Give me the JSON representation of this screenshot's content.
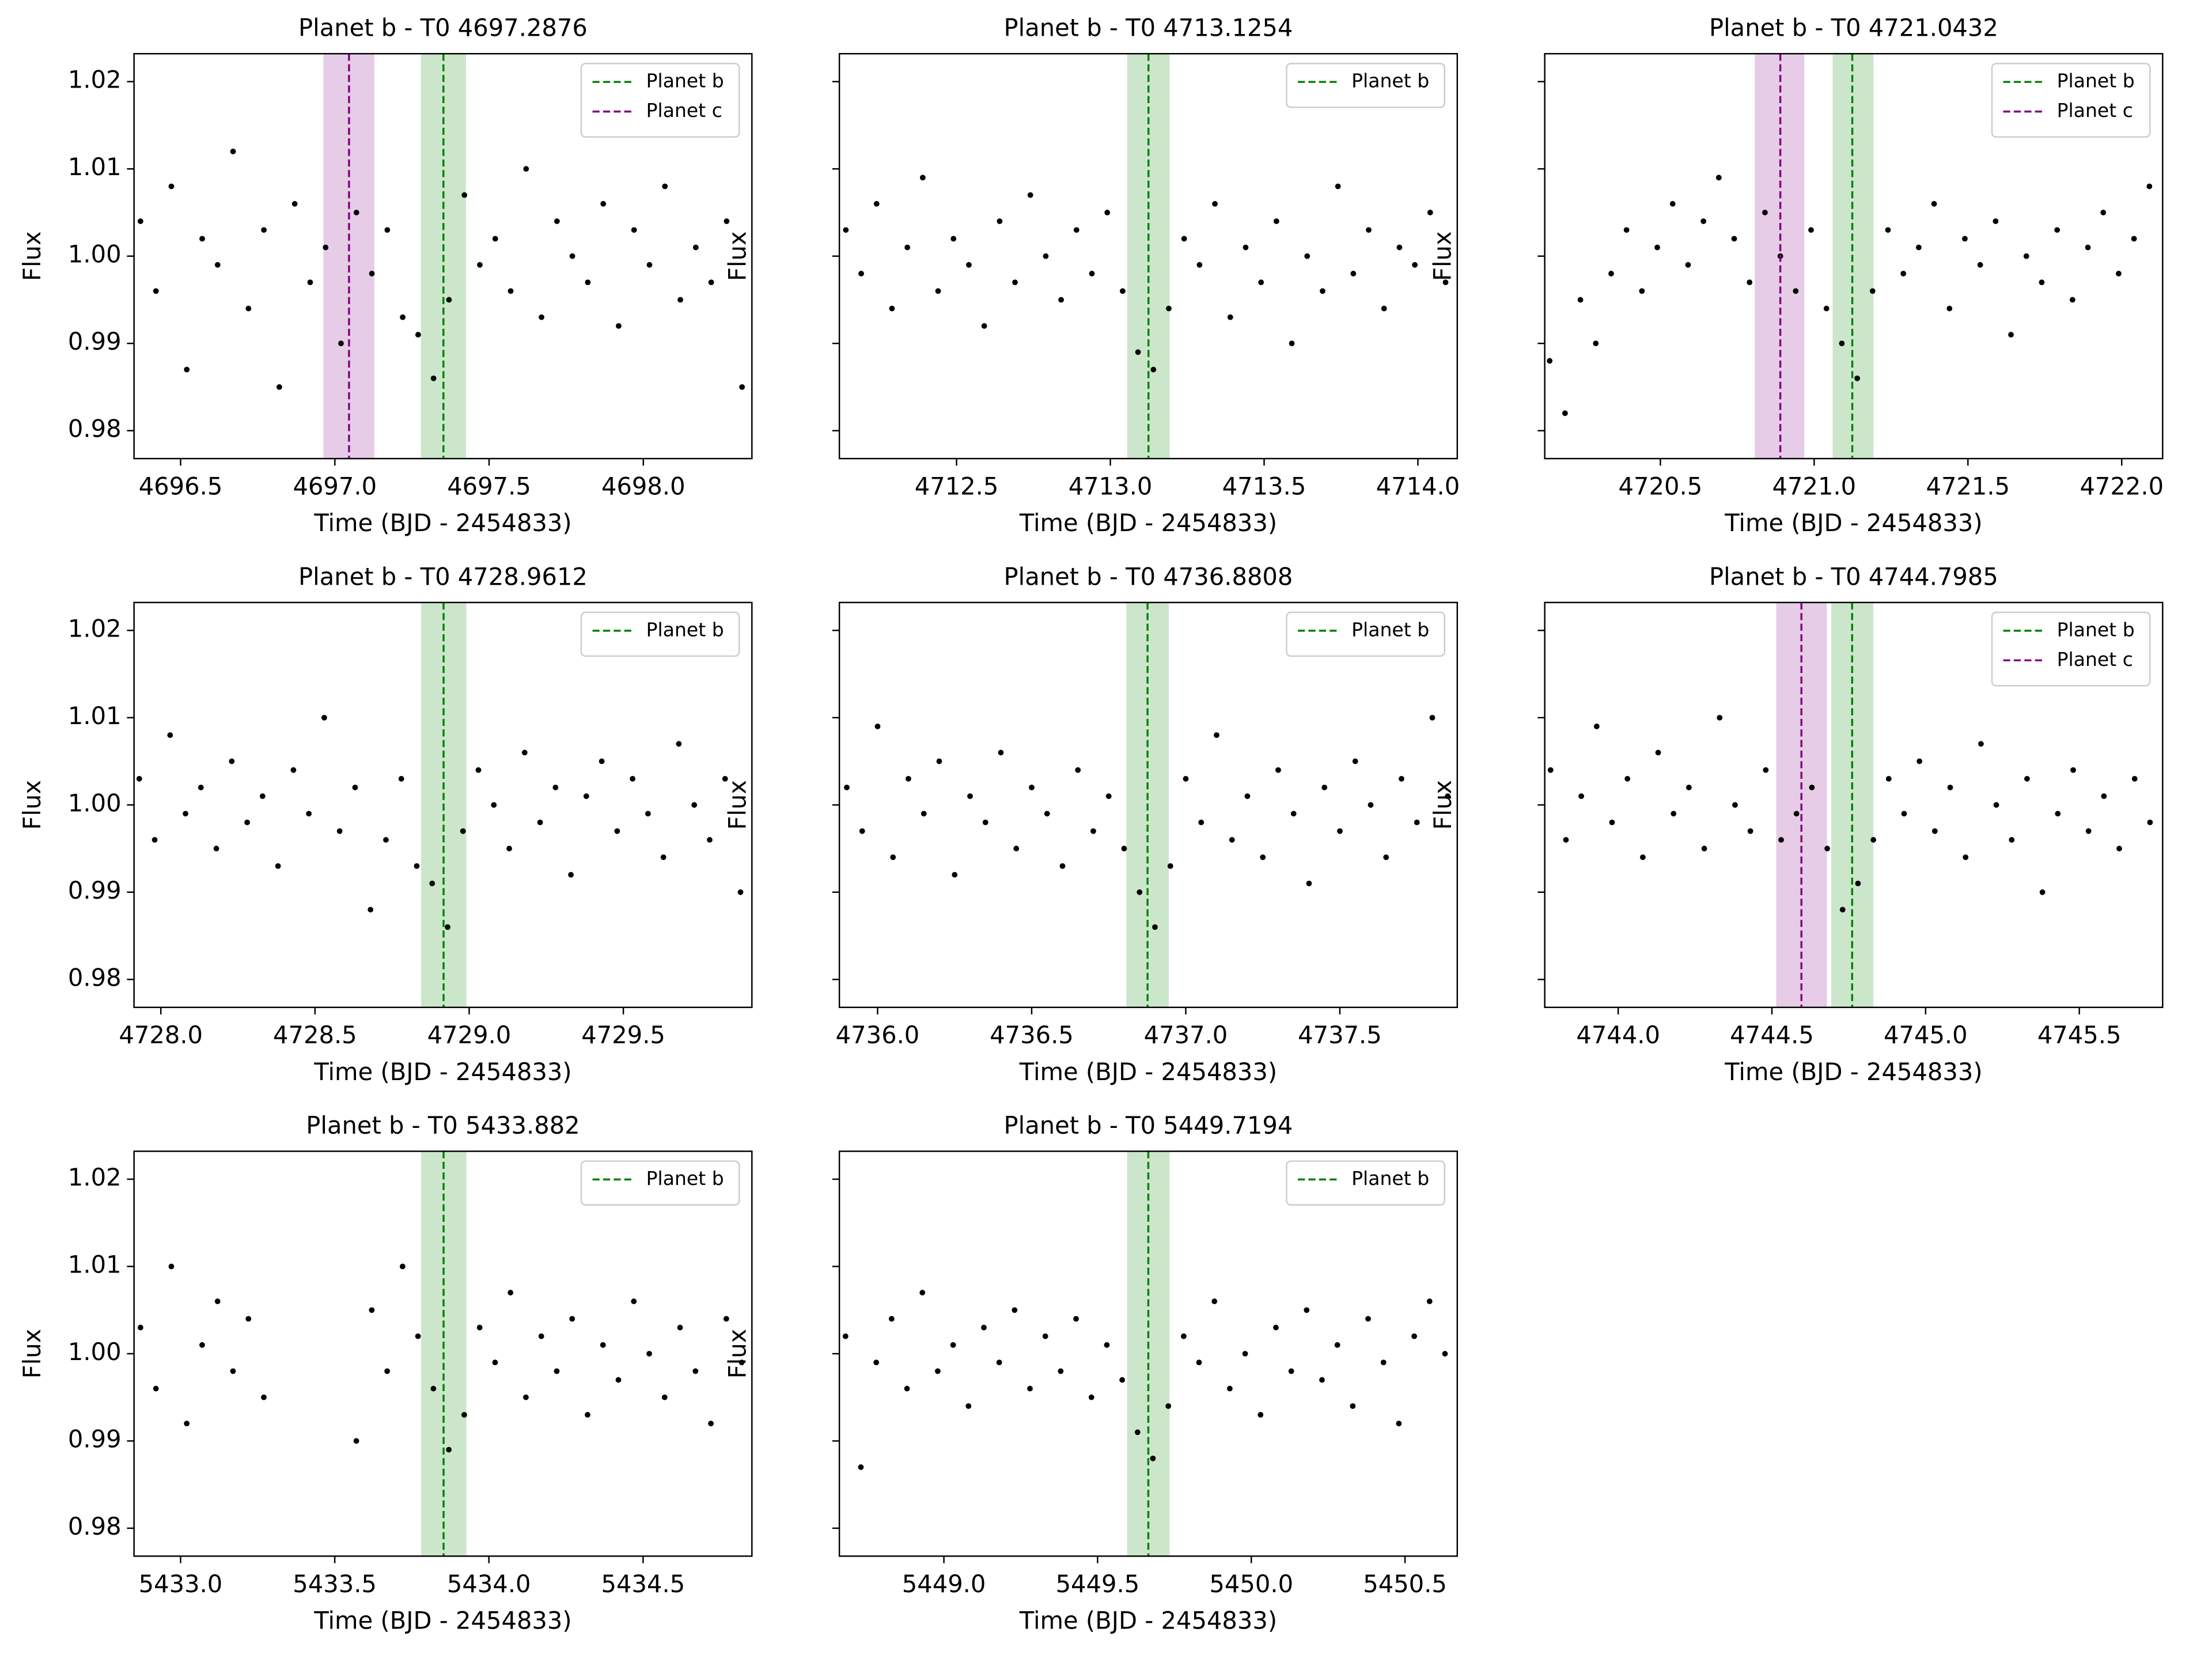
{
  "chart_data": [
    {
      "type": "scatter",
      "title": "Planet b - T0 4697.2876",
      "xlabel": "Time (BJD - 2454833)",
      "ylabel": "Flux",
      "color": "black",
      "legend": "upper right",
      "ytick_labels": true,
      "xlim": [
        4696.349,
        4698.352
      ],
      "ylim": [
        0.9768,
        1.0232
      ],
      "xticks": [
        4696.5,
        {
          "value": 4697,
          "label": "4697.0"
        },
        4697.5,
        {
          "value": 4698,
          "label": "4698.0"
        }
      ],
      "yticks": [
        0.98,
        0.99,
        {
          "value": 1,
          "label": "1.00"
        },
        1.01,
        1.02
      ],
      "transits": [
        {
          "name": "Planet b",
          "color": "green",
          "x": 4697.352,
          "span": [
            4697.279,
            4697.425
          ]
        },
        {
          "name": "Planet c",
          "color": "purple",
          "x": 4697.046,
          "span": [
            4696.963,
            4697.128
          ]
        }
      ],
      "x": [
        4696.37,
        4696.42,
        4696.47,
        4696.52,
        4696.57,
        4696.62,
        4696.67,
        4696.72,
        4696.77,
        4696.82,
        4696.87,
        4696.92,
        4696.97,
        4697.02,
        4697.07,
        4697.12,
        4697.17,
        4697.22,
        4697.27,
        4697.32,
        4697.37,
        4697.42,
        4697.47,
        4697.52,
        4697.57,
        4697.62,
        4697.67,
        4697.72,
        4697.77,
        4697.82,
        4697.87,
        4697.92,
        4697.97,
        4698.02,
        4698.07,
        4698.12,
        4698.17,
        4698.22,
        4698.27,
        4698.32
      ],
      "values": [
        1.004,
        0.996,
        1.008,
        0.987,
        1.002,
        0.999,
        1.012,
        0.994,
        1.003,
        0.985,
        1.006,
        0.997,
        1.001,
        0.99,
        1.005,
        0.998,
        1.003,
        0.993,
        0.991,
        0.986,
        0.995,
        1.007,
        0.999,
        1.002,
        0.996,
        1.01,
        0.993,
        1.004,
        1.0,
        0.997,
        1.006,
        0.992,
        1.003,
        0.999,
        1.008,
        0.995,
        1.001,
        0.997,
        1.004,
        0.985
      ]
    },
    {
      "type": "scatter",
      "title": "Planet b - T0 4713.1254",
      "xlabel": "Time (BJD - 2454833)",
      "ylabel": "Flux",
      "color": "black",
      "legend": "upper right",
      "ytick_labels": false,
      "xlim": [
        4712.119,
        4714.128
      ],
      "ylim": [
        0.9768,
        1.0232
      ],
      "xticks": [
        4712.5,
        {
          "value": 4713,
          "label": "4713.0"
        },
        4713.5,
        {
          "value": 4714,
          "label": "4714.0"
        }
      ],
      "yticks": [
        0.98,
        0.99,
        1,
        1.01,
        1.02
      ],
      "transits": [
        {
          "name": "Planet b",
          "color": "green",
          "x": 4713.124,
          "span": [
            4713.055,
            4713.193
          ]
        }
      ],
      "x": [
        4712.14,
        4712.19,
        4712.24,
        4712.29,
        4712.34,
        4712.39,
        4712.44,
        4712.49,
        4712.54,
        4712.59,
        4712.64,
        4712.69,
        4712.74,
        4712.79,
        4712.84,
        4712.89,
        4712.94,
        4712.99,
        4713.04,
        4713.09,
        4713.14,
        4713.19,
        4713.24,
        4713.29,
        4713.34,
        4713.39,
        4713.44,
        4713.49,
        4713.54,
        4713.59,
        4713.64,
        4713.69,
        4713.74,
        4713.79,
        4713.84,
        4713.89,
        4713.94,
        4713.99,
        4714.04,
        4714.09
      ],
      "values": [
        1.003,
        0.998,
        1.006,
        0.994,
        1.001,
        1.009,
        0.996,
        1.002,
        0.999,
        0.992,
        1.004,
        0.997,
        1.007,
        1.0,
        0.995,
        1.003,
        0.998,
        1.005,
        0.996,
        0.989,
        0.987,
        0.994,
        1.002,
        0.999,
        1.006,
        0.993,
        1.001,
        0.997,
        1.004,
        0.99,
        1.0,
        0.996,
        1.008,
        0.998,
        1.003,
        0.994,
        1.001,
        0.999,
        1.005,
        0.997
      ]
    },
    {
      "type": "scatter",
      "title": "Planet b - T0 4721.0432",
      "xlabel": "Time (BJD - 2454833)",
      "ylabel": "Flux",
      "color": "black",
      "legend": "upper right",
      "ytick_labels": false,
      "xlim": [
        4720.124,
        4722.133
      ],
      "ylim": [
        0.9768,
        1.0232
      ],
      "xticks": [
        4720.5,
        {
          "value": 4721,
          "label": "4721.0"
        },
        4721.5,
        {
          "value": 4722,
          "label": "4722.0"
        }
      ],
      "yticks": [
        0.98,
        0.99,
        1,
        1.01,
        1.02
      ],
      "transits": [
        {
          "name": "Planet b",
          "color": "green",
          "x": 4721.124,
          "span": [
            4721.06,
            4721.193
          ]
        },
        {
          "name": "Planet c",
          "color": "purple",
          "x": 4720.89,
          "span": [
            4720.807,
            4720.968
          ]
        }
      ],
      "x": [
        4720.14,
        4720.19,
        4720.24,
        4720.29,
        4720.34,
        4720.39,
        4720.44,
        4720.49,
        4720.54,
        4720.59,
        4720.64,
        4720.69,
        4720.74,
        4720.79,
        4720.84,
        4720.89,
        4720.94,
        4720.99,
        4721.04,
        4721.09,
        4721.14,
        4721.19,
        4721.24,
        4721.29,
        4721.34,
        4721.39,
        4721.44,
        4721.49,
        4721.54,
        4721.59,
        4721.64,
        4721.69,
        4721.74,
        4721.79,
        4721.84,
        4721.89,
        4721.94,
        4721.99,
        4722.04,
        4722.09
      ],
      "values": [
        0.988,
        0.982,
        0.995,
        0.99,
        0.998,
        1.003,
        0.996,
        1.001,
        1.006,
        0.999,
        1.004,
        1.009,
        1.002,
        0.997,
        1.005,
        1.0,
        0.996,
        1.003,
        0.994,
        0.99,
        0.986,
        0.996,
        1.003,
        0.998,
        1.001,
        1.006,
        0.994,
        1.002,
        0.999,
        1.004,
        0.991,
        1.0,
        0.997,
        1.003,
        0.995,
        1.001,
        1.005,
        0.998,
        1.002,
        1.008
      ]
    },
    {
      "type": "scatter",
      "title": "Planet b - T0 4728.9612",
      "xlabel": "Time (BJD - 2454833)",
      "ylabel": "Flux",
      "color": "black",
      "legend": "upper right",
      "ytick_labels": true,
      "xlim": [
        4727.913,
        4729.917
      ],
      "ylim": [
        0.9768,
        1.0232
      ],
      "xticks": [
        {
          "value": 4728,
          "label": "4728.0"
        },
        4728.5,
        {
          "value": 4729,
          "label": "4729.0"
        },
        4729.5
      ],
      "yticks": [
        0.98,
        0.99,
        {
          "value": 1,
          "label": "1.00"
        },
        1.01,
        1.02
      ],
      "transits": [
        {
          "name": "Planet b",
          "color": "green",
          "x": 4728.917,
          "span": [
            4728.844,
            4728.991
          ]
        }
      ],
      "x": [
        4727.93,
        4727.98,
        4728.03,
        4728.08,
        4728.13,
        4728.18,
        4728.23,
        4728.28,
        4728.33,
        4728.38,
        4728.43,
        4728.48,
        4728.53,
        4728.58,
        4728.63,
        4728.68,
        4728.73,
        4728.78,
        4728.83,
        4728.88,
        4728.93,
        4728.98,
        4729.03,
        4729.08,
        4729.13,
        4729.18,
        4729.23,
        4729.28,
        4729.33,
        4729.38,
        4729.43,
        4729.48,
        4729.53,
        4729.58,
        4729.63,
        4729.68,
        4729.73,
        4729.78,
        4729.83,
        4729.88
      ],
      "values": [
        1.003,
        0.996,
        1.008,
        0.999,
        1.002,
        0.995,
        1.005,
        0.998,
        1.001,
        0.993,
        1.004,
        0.999,
        1.01,
        0.997,
        1.002,
        0.988,
        0.996,
        1.003,
        0.993,
        0.991,
        0.986,
        0.997,
        1.004,
        1.0,
        0.995,
        1.006,
        0.998,
        1.002,
        0.992,
        1.001,
        1.005,
        0.997,
        1.003,
        0.999,
        0.994,
        1.007,
        1.0,
        0.996,
        1.003,
        0.99
      ]
    },
    {
      "type": "scatter",
      "title": "Planet b - T0 4736.8808",
      "xlabel": "Time (BJD - 2454833)",
      "ylabel": "Flux",
      "color": "black",
      "legend": "upper right",
      "ytick_labels": false,
      "xlim": [
        4735.876,
        4737.881
      ],
      "ylim": [
        0.9768,
        1.0232
      ],
      "xticks": [
        {
          "value": 4736,
          "label": "4736.0"
        },
        4736.5,
        {
          "value": 4737,
          "label": "4737.0"
        },
        4737.5
      ],
      "yticks": [
        0.98,
        0.99,
        1,
        1.01,
        1.02
      ],
      "transits": [
        {
          "name": "Planet b",
          "color": "green",
          "x": 4736.876,
          "span": [
            4736.807,
            4736.945
          ]
        }
      ],
      "x": [
        4735.9,
        4735.95,
        4736.0,
        4736.05,
        4736.1,
        4736.15,
        4736.2,
        4736.25,
        4736.3,
        4736.35,
        4736.4,
        4736.45,
        4736.5,
        4736.55,
        4736.6,
        4736.65,
        4736.7,
        4736.75,
        4736.8,
        4736.85,
        4736.9,
        4736.95,
        4737.0,
        4737.05,
        4737.1,
        4737.15,
        4737.2,
        4737.25,
        4737.3,
        4737.35,
        4737.4,
        4737.45,
        4737.5,
        4737.55,
        4737.6,
        4737.65,
        4737.7,
        4737.75,
        4737.8,
        4737.85
      ],
      "values": [
        1.002,
        0.997,
        1.009,
        0.994,
        1.003,
        0.999,
        1.005,
        0.992,
        1.001,
        0.998,
        1.006,
        0.995,
        1.002,
        0.999,
        0.993,
        1.004,
        0.997,
        1.001,
        0.995,
        0.99,
        0.986,
        0.993,
        1.003,
        0.998,
        1.008,
        0.996,
        1.001,
        0.994,
        1.004,
        0.999,
        0.991,
        1.002,
        0.997,
        1.005,
        1.0,
        0.994,
        1.003,
        0.998,
        1.01,
        1.001
      ]
    },
    {
      "type": "scatter",
      "title": "Planet b - T0 4744.7985",
      "xlabel": "Time (BJD - 2454833)",
      "ylabel": "Flux",
      "color": "black",
      "legend": "upper right",
      "ytick_labels": false,
      "xlim": [
        4743.761,
        4745.771
      ],
      "ylim": [
        0.9768,
        1.0232
      ],
      "xticks": [
        {
          "value": 4744,
          "label": "4744.0"
        },
        4744.5,
        {
          "value": 4745,
          "label": "4745.0"
        },
        4745.5
      ],
      "yticks": [
        0.98,
        0.99,
        1,
        1.01,
        1.02
      ],
      "transits": [
        {
          "name": "Planet b",
          "color": "green",
          "x": 4744.761,
          "span": [
            4744.693,
            4744.83
          ]
        },
        {
          "name": "Planet c",
          "color": "purple",
          "x": 4744.596,
          "span": [
            4744.514,
            4744.679
          ]
        }
      ],
      "x": [
        4743.78,
        4743.83,
        4743.88,
        4743.93,
        4743.98,
        4744.03,
        4744.08,
        4744.13,
        4744.18,
        4744.23,
        4744.28,
        4744.33,
        4744.38,
        4744.43,
        4744.48,
        4744.53,
        4744.58,
        4744.63,
        4744.68,
        4744.73,
        4744.78,
        4744.83,
        4744.88,
        4744.93,
        4744.98,
        4745.03,
        4745.08,
        4745.13,
        4745.18,
        4745.23,
        4745.28,
        4745.33,
        4745.38,
        4745.43,
        4745.48,
        4745.53,
        4745.58,
        4745.63,
        4745.68,
        4745.73
      ],
      "values": [
        1.004,
        0.996,
        1.001,
        1.009,
        0.998,
        1.003,
        0.994,
        1.006,
        0.999,
        1.002,
        0.995,
        1.01,
        1.0,
        0.997,
        1.004,
        0.996,
        0.999,
        1.002,
        0.995,
        0.988,
        0.991,
        0.996,
        1.003,
        0.999,
        1.005,
        0.997,
        1.002,
        0.994,
        1.007,
        1.0,
        0.996,
        1.003,
        0.99,
        0.999,
        1.004,
        0.997,
        1.001,
        0.995,
        1.003,
        0.998
      ]
    },
    {
      "type": "scatter",
      "title": "Planet b - T0 5433.882",
      "xlabel": "Time (BJD - 2454833)",
      "ylabel": "Flux",
      "color": "black",
      "legend": "upper right",
      "ytick_labels": true,
      "xlim": [
        5432.849,
        5434.853
      ],
      "ylim": [
        0.9768,
        1.0232
      ],
      "xticks": [
        {
          "value": 5433,
          "label": "5433.0"
        },
        5433.5,
        {
          "value": 5434,
          "label": "5434.0"
        },
        5434.5
      ],
      "yticks": [
        0.98,
        0.99,
        {
          "value": 1,
          "label": "1.00"
        },
        1.01,
        1.02
      ],
      "transits": [
        {
          "name": "Planet b",
          "color": "green",
          "x": 5433.853,
          "span": [
            5433.78,
            5433.927
          ]
        }
      ],
      "x": [
        5432.87,
        5432.92,
        5432.97,
        5433.02,
        5433.07,
        5433.12,
        5433.17,
        5433.22,
        5433.27,
        5433.57,
        5433.62,
        5433.67,
        5433.72,
        5433.77,
        5433.82,
        5433.87,
        5433.92,
        5433.97,
        5434.02,
        5434.07,
        5434.12,
        5434.17,
        5434.22,
        5434.27,
        5434.32,
        5434.37,
        5434.42,
        5434.47,
        5434.52,
        5434.57,
        5434.62,
        5434.67,
        5434.72,
        5434.77,
        5434.82
      ],
      "values": [
        1.003,
        0.996,
        1.01,
        0.992,
        1.001,
        1.006,
        0.998,
        1.004,
        0.995,
        0.99,
        1.005,
        0.998,
        1.01,
        1.002,
        0.996,
        0.989,
        0.993,
        1.003,
        0.999,
        1.007,
        0.995,
        1.002,
        0.998,
        1.004,
        0.993,
        1.001,
        0.997,
        1.006,
        1.0,
        0.995,
        1.003,
        0.998,
        0.992,
        1.004,
        0.999
      ]
    },
    {
      "type": "scatter",
      "title": "Planet b - T0 5449.7194",
      "xlabel": "Time (BJD - 2454833)",
      "ylabel": "Flux",
      "color": "black",
      "legend": "upper right",
      "ytick_labels": false,
      "xlim": [
        5448.66,
        5450.67
      ],
      "ylim": [
        0.9768,
        1.0232
      ],
      "xticks": [
        {
          "value": 5449,
          "label": "5449.0"
        },
        5449.5,
        {
          "value": 5450,
          "label": "5450.0"
        },
        5450.5
      ],
      "yticks": [
        0.98,
        0.99,
        1,
        1.01,
        1.02
      ],
      "transits": [
        {
          "name": "Planet b",
          "color": "green",
          "x": 5449.665,
          "span": [
            5449.596,
            5449.734
          ]
        }
      ],
      "x": [
        5448.68,
        5448.73,
        5448.78,
        5448.83,
        5448.88,
        5448.93,
        5448.98,
        5449.03,
        5449.08,
        5449.13,
        5449.18,
        5449.23,
        5449.28,
        5449.33,
        5449.38,
        5449.43,
        5449.48,
        5449.53,
        5449.58,
        5449.63,
        5449.68,
        5449.73,
        5449.78,
        5449.83,
        5449.88,
        5449.93,
        5449.98,
        5450.03,
        5450.08,
        5450.13,
        5450.18,
        5450.23,
        5450.28,
        5450.33,
        5450.38,
        5450.43,
        5450.48,
        5450.53,
        5450.58,
        5450.63
      ],
      "values": [
        1.002,
        0.987,
        0.999,
        1.004,
        0.996,
        1.007,
        0.998,
        1.001,
        0.994,
        1.003,
        0.999,
        1.005,
        0.996,
        1.002,
        0.998,
        1.004,
        0.995,
        1.001,
        0.997,
        0.991,
        0.988,
        0.994,
        1.002,
        0.999,
        1.006,
        0.996,
        1.0,
        0.993,
        1.003,
        0.998,
        1.005,
        0.997,
        1.001,
        0.994,
        1.004,
        0.999,
        0.992,
        1.002,
        1.006,
        1.0
      ]
    }
  ]
}
